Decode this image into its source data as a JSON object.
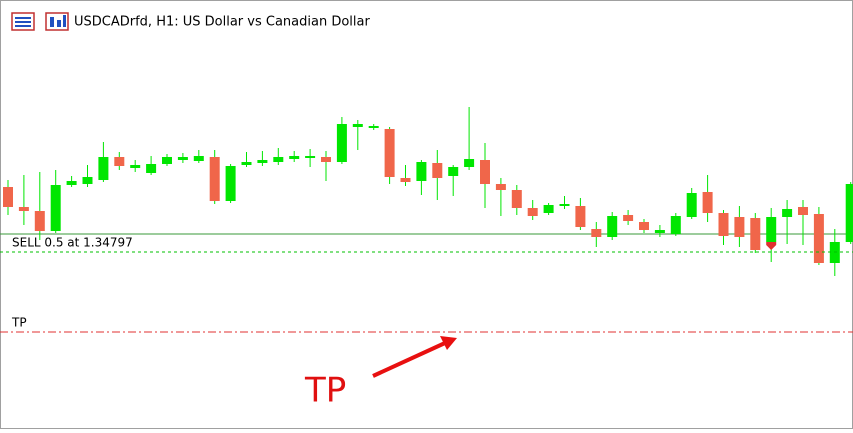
{
  "window": {
    "title": "USDCADrfd, H1:  US Dollar vs Canadian Dollar"
  },
  "chart_data": {
    "type": "candlestick",
    "ylim": [
      1.34443,
      1.35231
    ],
    "bull_color": "#00e600",
    "bear_color": "#f0664a",
    "open": [
      1.34927,
      1.34887,
      1.34879,
      1.34839,
      1.34931,
      1.34933,
      1.34941,
      1.34987,
      1.34965,
      1.34955,
      1.34973,
      1.34981,
      1.34979,
      1.34987,
      1.34899,
      1.34971,
      1.34975,
      1.34977,
      1.34983,
      1.34985,
      1.34987,
      1.34977,
      1.35047,
      1.35045,
      1.35043,
      1.34945,
      1.34939,
      1.34975,
      1.34949,
      1.34967,
      1.34981,
      1.34933,
      1.34921,
      1.34885,
      1.34875,
      1.34889,
      1.34889,
      1.34843,
      1.34827,
      1.34871,
      1.34857,
      1.34835,
      1.34833,
      1.34867,
      1.34917,
      1.34875,
      1.34867,
      1.34865,
      1.34817,
      1.34867,
      1.34887,
      1.34873,
      1.34775,
      1.34817
    ],
    "high": [
      1.34941,
      1.34951,
      1.34957,
      1.34961,
      1.34949,
      1.34971,
      1.35017,
      1.34997,
      1.34981,
      1.34989,
      1.34993,
      1.34995,
      1.35001,
      1.35001,
      1.34973,
      1.34997,
      1.34999,
      1.35005,
      1.34999,
      1.35003,
      1.34999,
      1.35067,
      1.35061,
      1.35053,
      1.35047,
      1.34971,
      1.34981,
      1.35001,
      1.34971,
      1.35087,
      1.35015,
      1.34945,
      1.34931,
      1.34901,
      1.34895,
      1.34909,
      1.34905,
      1.34857,
      1.34877,
      1.34881,
      1.34863,
      1.34851,
      1.34875,
      1.34925,
      1.34951,
      1.34881,
      1.34889,
      1.34875,
      1.34885,
      1.34901,
      1.34901,
      1.34887,
      1.34843,
      1.34937
    ],
    "low": [
      1.34871,
      1.34851,
      1.34821,
      1.34835,
      1.34927,
      1.34927,
      1.34937,
      1.34961,
      1.34957,
      1.34951,
      1.34969,
      1.34975,
      1.34975,
      1.34893,
      1.34895,
      1.34967,
      1.34969,
      1.34971,
      1.34977,
      1.34967,
      1.34939,
      1.34973,
      1.35001,
      1.35041,
      1.34933,
      1.34929,
      1.34911,
      1.34901,
      1.34909,
      1.34961,
      1.34885,
      1.34869,
      1.34871,
      1.34861,
      1.34871,
      1.34883,
      1.34841,
      1.34807,
      1.34821,
      1.34851,
      1.34835,
      1.34827,
      1.34829,
      1.34863,
      1.34857,
      1.34811,
      1.34807,
      1.34795,
      1.34777,
      1.34813,
      1.34811,
      1.34771,
      1.34749,
      1.34813
    ],
    "close": [
      1.34887,
      1.34879,
      1.34839,
      1.34931,
      1.34939,
      1.34947,
      1.34987,
      1.34969,
      1.34971,
      1.34973,
      1.34987,
      1.34987,
      1.34989,
      1.34899,
      1.34969,
      1.34977,
      1.34981,
      1.34987,
      1.34989,
      1.34989,
      1.34977,
      1.35053,
      1.35053,
      1.35049,
      1.34947,
      1.34937,
      1.34977,
      1.34945,
      1.34967,
      1.34983,
      1.34933,
      1.34921,
      1.34885,
      1.34869,
      1.34891,
      1.34893,
      1.34847,
      1.34827,
      1.34869,
      1.34859,
      1.34841,
      1.34841,
      1.34869,
      1.34915,
      1.34875,
      1.34829,
      1.34827,
      1.34801,
      1.34867,
      1.34883,
      1.34871,
      1.34775,
      1.34817,
      1.34933
    ],
    "bid_line": 1.34833,
    "orders": [
      {
        "label": "SELL 0.5 at 1.34797",
        "price": 1.34797,
        "color": "#00c000"
      },
      {
        "label": "TP",
        "price": 1.34637,
        "color": "#e03030"
      }
    ],
    "entry_index": 48
  },
  "annotation": "TP"
}
